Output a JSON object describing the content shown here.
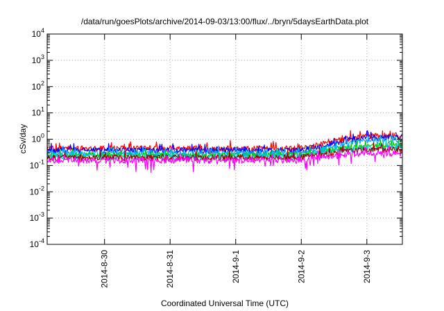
{
  "chart_data": {
    "type": "line",
    "title": "/data/run/goesPlots/archive/2014-09-03/13:00/flux/../bryn/5daysEarthData.plot",
    "xlabel": "Coordinated Universal Time (UTC)",
    "ylabel": "cSv/day",
    "yscale": "log",
    "ylim": [
      0.0001,
      10000
    ],
    "y_ticks": [
      {
        "base": "10",
        "exp": "-4",
        "value": 0.0001
      },
      {
        "base": "10",
        "exp": "-3",
        "value": 0.001
      },
      {
        "base": "10",
        "exp": "-2",
        "value": 0.01
      },
      {
        "base": "10",
        "exp": "-1",
        "value": 0.1
      },
      {
        "base": "10",
        "exp": "0",
        "value": 1
      },
      {
        "base": "10",
        "exp": "1",
        "value": 10
      },
      {
        "base": "10",
        "exp": "2",
        "value": 100
      },
      {
        "base": "10",
        "exp": "3",
        "value": 1000
      },
      {
        "base": "10",
        "exp": "4",
        "value": 10000
      }
    ],
    "xlim": [
      "2014-08-29 03:00",
      "2014-09-03 13:00"
    ],
    "x_ticks": [
      "2014-8-30",
      "2014-8-31",
      "2014-9-1",
      "2014-9-2",
      "2014-9-3"
    ],
    "grid": true,
    "series": [
      {
        "color": "#ff0000",
        "x": [
          "2014-08-29 03:00",
          "2014-08-30 00:00",
          "2014-08-31 00:00",
          "2014-09-01 00:00",
          "2014-09-02 00:00",
          "2014-09-02 06:00",
          "2014-09-02 12:00",
          "2014-09-02 18:00",
          "2014-09-03 00:00",
          "2014-09-03 13:00"
        ],
        "y": [
          0.45,
          0.45,
          0.45,
          0.45,
          0.46,
          0.6,
          0.85,
          1.1,
          1.3,
          1.5
        ]
      },
      {
        "color": "#0000ff",
        "x": [
          "2014-08-29 03:00",
          "2014-08-30 00:00",
          "2014-08-31 00:00",
          "2014-09-01 00:00",
          "2014-09-02 00:00",
          "2014-09-02 06:00",
          "2014-09-02 12:00",
          "2014-09-02 18:00",
          "2014-09-03 00:00",
          "2014-09-03 13:00"
        ],
        "y": [
          0.38,
          0.38,
          0.38,
          0.38,
          0.39,
          0.5,
          0.72,
          0.95,
          1.1,
          1.25
        ]
      },
      {
        "color": "#00aaff",
        "x": [
          "2014-08-29 03:00",
          "2014-08-30 00:00",
          "2014-08-31 00:00",
          "2014-09-01 00:00",
          "2014-09-02 00:00",
          "2014-09-02 06:00",
          "2014-09-02 12:00",
          "2014-09-02 18:00",
          "2014-09-03 00:00",
          "2014-09-03 13:00"
        ],
        "y": [
          0.3,
          0.3,
          0.3,
          0.3,
          0.31,
          0.38,
          0.55,
          0.72,
          0.85,
          0.95
        ]
      },
      {
        "color": "#00cc00",
        "x": [
          "2014-08-29 03:00",
          "2014-08-30 00:00",
          "2014-08-31 00:00",
          "2014-09-01 00:00",
          "2014-09-02 00:00",
          "2014-09-02 06:00",
          "2014-09-02 12:00",
          "2014-09-02 18:00",
          "2014-09-03 00:00",
          "2014-09-03 13:00"
        ],
        "y": [
          0.25,
          0.25,
          0.25,
          0.25,
          0.26,
          0.3,
          0.4,
          0.48,
          0.55,
          0.6
        ]
      },
      {
        "color": "#00cccc",
        "x": [
          "2014-08-29 03:00",
          "2014-08-30 00:00",
          "2014-08-31 00:00",
          "2014-09-01 00:00",
          "2014-09-02 00:00",
          "2014-09-02 06:00",
          "2014-09-02 12:00",
          "2014-09-02 18:00",
          "2014-09-03 00:00",
          "2014-09-03 13:00"
        ],
        "y": [
          0.22,
          0.22,
          0.22,
          0.22,
          0.23,
          0.27,
          0.35,
          0.42,
          0.48,
          0.52
        ]
      },
      {
        "color": "#a00000",
        "x": [
          "2014-08-29 03:00",
          "2014-08-30 00:00",
          "2014-08-31 00:00",
          "2014-09-01 00:00",
          "2014-09-02 00:00",
          "2014-09-02 06:00",
          "2014-09-02 12:00",
          "2014-09-02 18:00",
          "2014-09-03 00:00",
          "2014-09-03 13:00"
        ],
        "y": [
          0.2,
          0.2,
          0.2,
          0.2,
          0.21,
          0.24,
          0.3,
          0.36,
          0.4,
          0.42
        ]
      },
      {
        "color": "#ff00ff",
        "x": [
          "2014-08-29 03:00",
          "2014-08-30 00:00",
          "2014-08-31 00:00",
          "2014-09-01 00:00",
          "2014-09-02 00:00",
          "2014-09-02 06:00",
          "2014-09-02 12:00",
          "2014-09-02 18:00",
          "2014-09-03 00:00",
          "2014-09-03 13:00"
        ],
        "y": [
          0.16,
          0.16,
          0.16,
          0.16,
          0.16,
          0.19,
          0.23,
          0.27,
          0.3,
          0.3
        ]
      }
    ]
  }
}
